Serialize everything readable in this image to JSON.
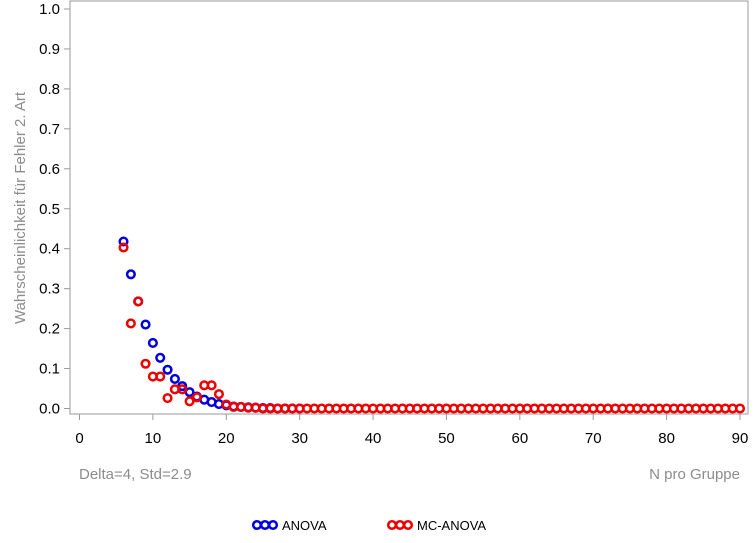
{
  "chart_data": {
    "type": "scatter",
    "ylabel": "Wahrscheinlichkeit für Fehler 2. Art",
    "xlabel": "N pro Gruppe",
    "annotation": "Delta=4, Std=2.9",
    "xlim": [
      0,
      90
    ],
    "ylim": [
      0,
      1.0
    ],
    "x_ticks": [
      "0",
      "10",
      "20",
      "30",
      "40",
      "50",
      "60",
      "70",
      "80",
      "90"
    ],
    "y_ticks": [
      "0.0",
      "0.1",
      "0.2",
      "0.3",
      "0.4",
      "0.5",
      "0.6",
      "0.7",
      "0.8",
      "0.9",
      "1.0"
    ],
    "legend_position": "bottom-center",
    "series": [
      {
        "name": "ANOVA",
        "color": "#0000dd",
        "points": [
          [
            6,
            0.418
          ],
          [
            7,
            0.336
          ],
          [
            8,
            0.268
          ],
          [
            9,
            0.21
          ],
          [
            10,
            0.164
          ],
          [
            11,
            0.127
          ],
          [
            12,
            0.097
          ],
          [
            13,
            0.074
          ],
          [
            14,
            0.056
          ],
          [
            15,
            0.041
          ],
          [
            16,
            0.03
          ],
          [
            17,
            0.022
          ],
          [
            18,
            0.016
          ],
          [
            19,
            0.011
          ],
          [
            20,
            0.008
          ],
          [
            21,
            0.005
          ],
          [
            22,
            0.004
          ],
          [
            23,
            0.003
          ],
          [
            24,
            0.002
          ],
          [
            25,
            0.001
          ],
          [
            26,
            0.001
          ],
          [
            27,
            0.0
          ],
          [
            28,
            0.0
          ],
          [
            29,
            0.0
          ],
          [
            30,
            0.0
          ]
        ]
      },
      {
        "name": "MC-ANOVA",
        "color": "#ee0000",
        "points": [
          [
            6,
            0.403
          ],
          [
            7,
            0.213
          ],
          [
            8,
            0.268
          ],
          [
            9,
            0.112
          ],
          [
            10,
            0.08
          ],
          [
            11,
            0.08
          ],
          [
            12,
            0.026
          ],
          [
            13,
            0.048
          ],
          [
            14,
            0.048
          ],
          [
            15,
            0.018
          ],
          [
            16,
            0.028
          ],
          [
            17,
            0.058
          ],
          [
            18,
            0.058
          ],
          [
            19,
            0.036
          ],
          [
            20,
            0.01
          ],
          [
            21,
            0.004
          ],
          [
            22,
            0.004
          ],
          [
            23,
            0.002
          ],
          [
            24,
            0.002
          ],
          [
            25,
            0.0
          ],
          [
            26,
            0.0
          ],
          [
            27,
            0.0
          ],
          [
            28,
            0.0
          ],
          [
            29,
            0.0
          ],
          [
            30,
            0.0
          ],
          [
            31,
            0.0
          ],
          [
            32,
            0.0
          ],
          [
            33,
            0.0
          ],
          [
            34,
            0.0
          ],
          [
            35,
            0.0
          ],
          [
            36,
            0.0
          ],
          [
            37,
            0.0
          ],
          [
            38,
            0.0
          ],
          [
            39,
            0.0
          ],
          [
            40,
            0.0
          ],
          [
            41,
            0.0
          ],
          [
            42,
            0.0
          ],
          [
            43,
            0.0
          ],
          [
            44,
            0.0
          ],
          [
            45,
            0.0
          ],
          [
            46,
            0.0
          ],
          [
            47,
            0.0
          ],
          [
            48,
            0.0
          ],
          [
            49,
            0.0
          ],
          [
            50,
            0.0
          ],
          [
            51,
            0.0
          ],
          [
            52,
            0.0
          ],
          [
            53,
            0.0
          ],
          [
            54,
            0.0
          ],
          [
            55,
            0.0
          ],
          [
            56,
            0.0
          ],
          [
            57,
            0.0
          ],
          [
            58,
            0.0
          ],
          [
            59,
            0.0
          ],
          [
            60,
            0.0
          ],
          [
            61,
            0.0
          ],
          [
            62,
            0.0
          ],
          [
            63,
            0.0
          ],
          [
            64,
            0.0
          ],
          [
            65,
            0.0
          ],
          [
            66,
            0.0
          ],
          [
            67,
            0.0
          ],
          [
            68,
            0.0
          ],
          [
            69,
            0.0
          ],
          [
            70,
            0.0
          ],
          [
            71,
            0.0
          ],
          [
            72,
            0.0
          ],
          [
            73,
            0.0
          ],
          [
            74,
            0.0
          ],
          [
            75,
            0.0
          ],
          [
            76,
            0.0
          ],
          [
            77,
            0.0
          ],
          [
            78,
            0.0
          ],
          [
            79,
            0.0
          ],
          [
            80,
            0.0
          ],
          [
            81,
            0.0
          ],
          [
            82,
            0.0
          ],
          [
            83,
            0.0
          ],
          [
            84,
            0.0
          ],
          [
            85,
            0.0
          ],
          [
            86,
            0.0
          ],
          [
            87,
            0.0
          ],
          [
            88,
            0.0
          ],
          [
            89,
            0.0
          ],
          [
            90,
            0.0
          ]
        ]
      }
    ]
  }
}
